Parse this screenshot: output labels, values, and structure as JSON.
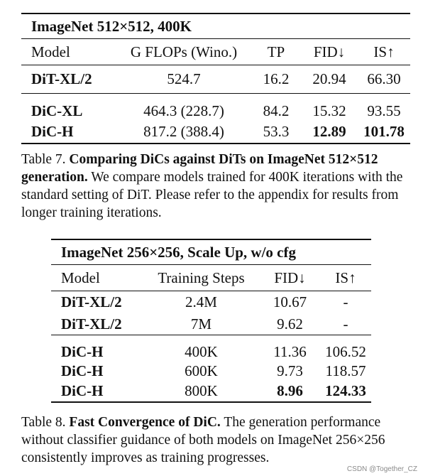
{
  "table7": {
    "title": "ImageNet 512×512, 400K",
    "headers": [
      "Model",
      "G FLOPs (Wino.)",
      "TP",
      "FID↓",
      "IS↑"
    ],
    "rows": [
      {
        "model": "DiT-XL/2",
        "flops": "524.7",
        "tp": "16.2",
        "fid": "20.94",
        "is": "66.30"
      },
      {
        "model": "DiC-XL",
        "flops": "464.3 (228.7)",
        "tp": "84.2",
        "fid": "15.32",
        "is": "93.55"
      },
      {
        "model": "DiC-H",
        "flops": "817.2 (388.4)",
        "tp": "53.3",
        "fid": "12.89",
        "is": "101.78"
      }
    ]
  },
  "caption7": {
    "label": "Table 7.",
    "bold": "Comparing DiCs against DiTs on ImageNet 512×512 generation.",
    "text": "We compare models trained for 400K iterations with the standard setting of DiT. Please refer to the appendix for results from longer training iterations."
  },
  "table8": {
    "title": "ImageNet 256×256, Scale Up, w/o cfg",
    "headers": [
      "Model",
      "Training Steps",
      "FID↓",
      "IS↑"
    ],
    "rows": [
      {
        "model": "DiT-XL/2",
        "steps": "2.4M",
        "fid": "10.67",
        "is": "-"
      },
      {
        "model": "DiT-XL/2",
        "steps": "7M",
        "fid": "9.62",
        "is": "-"
      },
      {
        "model": "DiC-H",
        "steps": "400K",
        "fid": "11.36",
        "is": "106.52"
      },
      {
        "model": "DiC-H",
        "steps": "600K",
        "fid": "9.73",
        "is": "118.57"
      },
      {
        "model": "DiC-H",
        "steps": "800K",
        "fid": "8.96",
        "is": "124.33"
      }
    ]
  },
  "caption8": {
    "label": "Table 8.",
    "bold": "Fast Convergence of DiC.",
    "text": "The generation performance without classifier guidance of both models on ImageNet 256×256 consistently improves as training progresses."
  },
  "watermark": "CSDN @Together_CZ"
}
